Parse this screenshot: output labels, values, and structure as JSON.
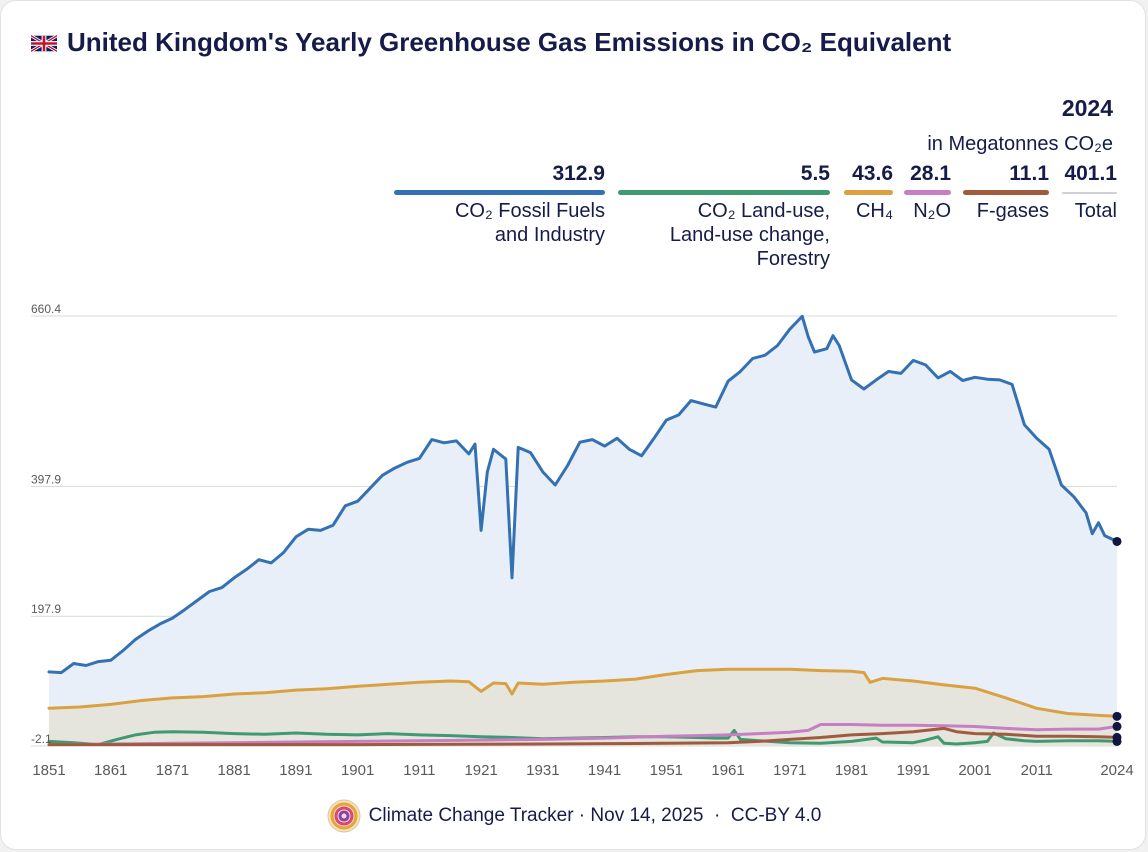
{
  "title": "United Kingdom's Yearly Greenhouse Gas Emissions in CO₂ Equivalent",
  "legend": {
    "year": "2024",
    "unit": "in Megatonnes CO₂e",
    "total_value": "401.1",
    "total_label": "Total"
  },
  "footer": {
    "text": "Climate Change Tracker · Nov 14, 2025  ·  CC-BY 4.0"
  },
  "chart_data": {
    "type": "area",
    "title": "United Kingdom's Yearly Greenhouse Gas Emissions in CO₂ Equivalent",
    "ylabel": "",
    "xlabel": "",
    "ylim": [
      -2.1,
      660.4
    ],
    "xlim": [
      1851,
      2024
    ],
    "y_ticks": [
      "660.4",
      "397.9",
      "197.9",
      "-2.1"
    ],
    "x_ticks": [
      "1851",
      "1861",
      "1871",
      "1881",
      "1891",
      "1901",
      "1911",
      "1921",
      "1931",
      "1941",
      "1951",
      "1961",
      "1971",
      "1981",
      "1991",
      "2001",
      "2011",
      "2024"
    ],
    "grid": true,
    "series": [
      {
        "key": "co2_fossil",
        "name": "CO₂ Fossil Fuels and Industry",
        "label_lines": [
          "CO₂ Fossil Fuels",
          "and Industry"
        ],
        "value_2024": "312.9",
        "color": "#3471b2",
        "points": [
          [
            1851,
            112
          ],
          [
            1853,
            111
          ],
          [
            1855,
            125
          ],
          [
            1857,
            122
          ],
          [
            1859,
            128
          ],
          [
            1861,
            130
          ],
          [
            1863,
            145
          ],
          [
            1865,
            162
          ],
          [
            1867,
            175
          ],
          [
            1869,
            186
          ],
          [
            1871,
            195
          ],
          [
            1873,
            208
          ],
          [
            1875,
            222
          ],
          [
            1877,
            236
          ],
          [
            1879,
            242
          ],
          [
            1881,
            257
          ],
          [
            1883,
            270
          ],
          [
            1885,
            285
          ],
          [
            1887,
            280
          ],
          [
            1889,
            296
          ],
          [
            1891,
            320
          ],
          [
            1893,
            332
          ],
          [
            1895,
            330
          ],
          [
            1897,
            338
          ],
          [
            1899,
            368
          ],
          [
            1901,
            375
          ],
          [
            1903,
            395
          ],
          [
            1905,
            415
          ],
          [
            1907,
            426
          ],
          [
            1909,
            435
          ],
          [
            1911,
            441
          ],
          [
            1913,
            470
          ],
          [
            1915,
            465
          ],
          [
            1917,
            468
          ],
          [
            1919,
            448
          ],
          [
            1920,
            463
          ],
          [
            1921,
            330
          ],
          [
            1922,
            420
          ],
          [
            1923,
            455
          ],
          [
            1925,
            440
          ],
          [
            1926,
            257
          ],
          [
            1927,
            458
          ],
          [
            1929,
            450
          ],
          [
            1931,
            420
          ],
          [
            1933,
            400
          ],
          [
            1935,
            430
          ],
          [
            1937,
            466
          ],
          [
            1939,
            470
          ],
          [
            1941,
            460
          ],
          [
            1943,
            472
          ],
          [
            1945,
            455
          ],
          [
            1947,
            445
          ],
          [
            1949,
            472
          ],
          [
            1951,
            500
          ],
          [
            1953,
            508
          ],
          [
            1955,
            530
          ],
          [
            1957,
            525
          ],
          [
            1959,
            520
          ],
          [
            1961,
            560
          ],
          [
            1963,
            575
          ],
          [
            1965,
            595
          ],
          [
            1967,
            600
          ],
          [
            1969,
            615
          ],
          [
            1971,
            640
          ],
          [
            1973,
            660
          ],
          [
            1974,
            628
          ],
          [
            1975,
            605
          ],
          [
            1977,
            610
          ],
          [
            1978,
            630
          ],
          [
            1979,
            615
          ],
          [
            1981,
            562
          ],
          [
            1983,
            548
          ],
          [
            1985,
            562
          ],
          [
            1987,
            575
          ],
          [
            1989,
            572
          ],
          [
            1991,
            592
          ],
          [
            1993,
            585
          ],
          [
            1995,
            565
          ],
          [
            1997,
            575
          ],
          [
            1999,
            561
          ],
          [
            2001,
            566
          ],
          [
            2003,
            563
          ],
          [
            2005,
            562
          ],
          [
            2007,
            555
          ],
          [
            2009,
            493
          ],
          [
            2011,
            472
          ],
          [
            2013,
            455
          ],
          [
            2015,
            400
          ],
          [
            2017,
            382
          ],
          [
            2019,
            357
          ],
          [
            2020,
            325
          ],
          [
            2021,
            342
          ],
          [
            2022,
            322
          ],
          [
            2024,
            313
          ]
        ]
      },
      {
        "key": "co2_landuse",
        "name": "CO₂ Land-use, Land-use change, Forestry",
        "label_lines": [
          "CO₂ Land-use,",
          "Land-use change,",
          "Forestry"
        ],
        "value_2024": "5.5",
        "color": "#3f9a72",
        "points": [
          [
            1851,
            5
          ],
          [
            1855,
            3
          ],
          [
            1859,
            0
          ],
          [
            1862,
            8
          ],
          [
            1865,
            15
          ],
          [
            1868,
            19
          ],
          [
            1871,
            20
          ],
          [
            1876,
            19
          ],
          [
            1881,
            17
          ],
          [
            1886,
            16
          ],
          [
            1891,
            18
          ],
          [
            1896,
            16
          ],
          [
            1901,
            15
          ],
          [
            1906,
            17
          ],
          [
            1911,
            15
          ],
          [
            1916,
            14
          ],
          [
            1921,
            12
          ],
          [
            1926,
            11
          ],
          [
            1931,
            9
          ],
          [
            1936,
            10
          ],
          [
            1941,
            11
          ],
          [
            1946,
            12
          ],
          [
            1951,
            12
          ],
          [
            1956,
            11
          ],
          [
            1959,
            10
          ],
          [
            1961,
            10
          ],
          [
            1962,
            22
          ],
          [
            1963,
            8
          ],
          [
            1966,
            6
          ],
          [
            1971,
            3
          ],
          [
            1976,
            2
          ],
          [
            1981,
            5
          ],
          [
            1985,
            10
          ],
          [
            1986,
            4
          ],
          [
            1991,
            3
          ],
          [
            1993,
            7
          ],
          [
            1995,
            12
          ],
          [
            1996,
            2
          ],
          [
            1998,
            1
          ],
          [
            2001,
            3
          ],
          [
            2003,
            5
          ],
          [
            2004,
            18
          ],
          [
            2006,
            9
          ],
          [
            2009,
            6
          ],
          [
            2011,
            5
          ],
          [
            2016,
            6
          ],
          [
            2021,
            6
          ],
          [
            2024,
            5
          ]
        ]
      },
      {
        "key": "ch4",
        "name": "CH₄",
        "label_lines": [
          "CH₄"
        ],
        "value_2024": "43.6",
        "color": "#d9a13f",
        "points": [
          [
            1851,
            56
          ],
          [
            1856,
            58
          ],
          [
            1861,
            62
          ],
          [
            1866,
            68
          ],
          [
            1871,
            72
          ],
          [
            1876,
            74
          ],
          [
            1881,
            78
          ],
          [
            1886,
            80
          ],
          [
            1891,
            84
          ],
          [
            1896,
            86
          ],
          [
            1901,
            90
          ],
          [
            1906,
            93
          ],
          [
            1911,
            96
          ],
          [
            1916,
            98
          ],
          [
            1919,
            97
          ],
          [
            1921,
            82
          ],
          [
            1923,
            95
          ],
          [
            1925,
            94
          ],
          [
            1926,
            78
          ],
          [
            1927,
            95
          ],
          [
            1931,
            93
          ],
          [
            1936,
            96
          ],
          [
            1941,
            98
          ],
          [
            1946,
            101
          ],
          [
            1951,
            108
          ],
          [
            1956,
            114
          ],
          [
            1961,
            116
          ],
          [
            1966,
            116
          ],
          [
            1971,
            116
          ],
          [
            1976,
            114
          ],
          [
            1981,
            113
          ],
          [
            1983,
            111
          ],
          [
            1984,
            96
          ],
          [
            1986,
            102
          ],
          [
            1991,
            98
          ],
          [
            1996,
            92
          ],
          [
            2001,
            87
          ],
          [
            2006,
            72
          ],
          [
            2011,
            56
          ],
          [
            2016,
            48
          ],
          [
            2021,
            45
          ],
          [
            2024,
            43.6
          ]
        ]
      },
      {
        "key": "n2o",
        "name": "N₂O",
        "label_lines": [
          "N₂O"
        ],
        "value_2024": "28.1",
        "color": "#c67ec4",
        "points": [
          [
            1851,
            0
          ],
          [
            1861,
            1
          ],
          [
            1871,
            2
          ],
          [
            1881,
            3
          ],
          [
            1891,
            4
          ],
          [
            1901,
            5
          ],
          [
            1911,
            6
          ],
          [
            1921,
            7
          ],
          [
            1931,
            8
          ],
          [
            1941,
            10
          ],
          [
            1951,
            13
          ],
          [
            1956,
            14
          ],
          [
            1961,
            15
          ],
          [
            1966,
            17
          ],
          [
            1971,
            19
          ],
          [
            1974,
            22
          ],
          [
            1976,
            31
          ],
          [
            1981,
            31
          ],
          [
            1986,
            30
          ],
          [
            1991,
            30
          ],
          [
            1996,
            29
          ],
          [
            2001,
            28
          ],
          [
            2006,
            25
          ],
          [
            2011,
            23
          ],
          [
            2016,
            24
          ],
          [
            2021,
            24
          ],
          [
            2024,
            28.1
          ]
        ]
      },
      {
        "key": "fgases",
        "name": "F-gases",
        "label_lines": [
          "F-gases"
        ],
        "value_2024": "11.1",
        "color": "#a05a3e",
        "points": [
          [
            1851,
            0
          ],
          [
            1901,
            0
          ],
          [
            1931,
            1
          ],
          [
            1951,
            2
          ],
          [
            1961,
            3
          ],
          [
            1966,
            5
          ],
          [
            1971,
            8
          ],
          [
            1976,
            11
          ],
          [
            1981,
            15
          ],
          [
            1986,
            17
          ],
          [
            1991,
            20
          ],
          [
            1996,
            25
          ],
          [
            1998,
            20
          ],
          [
            2001,
            17
          ],
          [
            2006,
            16
          ],
          [
            2011,
            13
          ],
          [
            2016,
            13
          ],
          [
            2021,
            12
          ],
          [
            2024,
            11.1
          ]
        ]
      }
    ]
  }
}
